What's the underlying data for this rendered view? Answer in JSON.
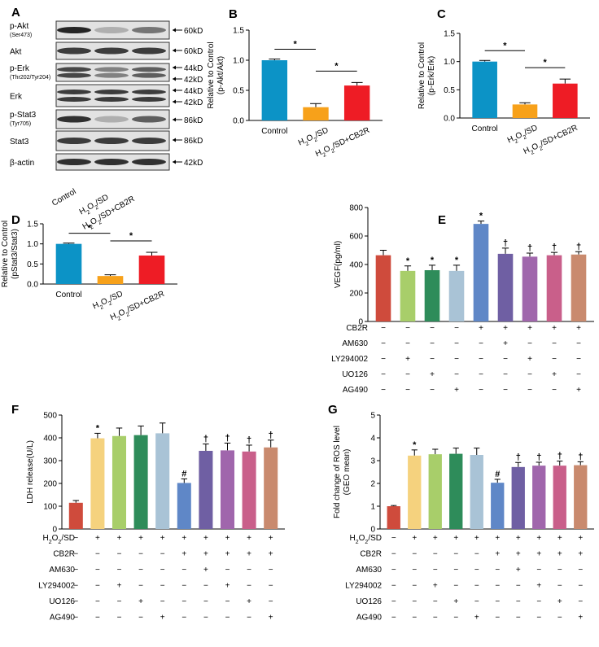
{
  "panel_labels": [
    "A",
    "B",
    "C",
    "D",
    "E",
    "F",
    "G"
  ],
  "chart_data": [
    {
      "panel": "B",
      "type": "bar",
      "ylabel": "Relative to Control\n(p-Akt/Akt)",
      "categories": [
        "Control",
        "H2O2/SD",
        "H2O2/SD+CB2R"
      ],
      "values": [
        1.0,
        0.22,
        0.58
      ],
      "errors": [
        0.02,
        0.06,
        0.05
      ],
      "colors": [
        "#0c93c6",
        "#f7a11a",
        "#ee1c25"
      ],
      "ylim": [
        0,
        1.5
      ],
      "yticks": [
        0.0,
        0.5,
        1.0,
        1.5
      ],
      "tick_labels": [
        "0.0",
        "0.5",
        "1.0",
        "1.5"
      ],
      "sig": [
        {
          "from": 0,
          "to": 1,
          "label": "*"
        },
        {
          "from": 1,
          "to": 2,
          "label": "*"
        }
      ]
    },
    {
      "panel": "C",
      "type": "bar",
      "ylabel": "Relative to Control\n(p-Erk/Erk)",
      "categories": [
        "Control",
        "H2O2/SD",
        "H2O2/SD+CB2R"
      ],
      "values": [
        1.0,
        0.24,
        0.61
      ],
      "errors": [
        0.02,
        0.03,
        0.08
      ],
      "colors": [
        "#0c93c6",
        "#f7a11a",
        "#ee1c25"
      ],
      "ylim": [
        0,
        1.5
      ],
      "yticks": [
        0.0,
        0.5,
        1.0,
        1.5
      ],
      "tick_labels": [
        "0.0",
        "0.5",
        "1.0",
        "1.5"
      ],
      "sig": [
        {
          "from": 0,
          "to": 1,
          "label": "*"
        },
        {
          "from": 1,
          "to": 2,
          "label": "*"
        }
      ]
    },
    {
      "panel": "D",
      "type": "bar",
      "ylabel": "Relative to Control\n(pStat3/Stat3)",
      "categories": [
        "Control",
        "H2O2/SD",
        "H2O2/SD+CB2R"
      ],
      "values": [
        1.0,
        0.2,
        0.71
      ],
      "errors": [
        0.02,
        0.03,
        0.08
      ],
      "colors": [
        "#0c93c6",
        "#f7a11a",
        "#ee1c25"
      ],
      "ylim": [
        0,
        1.5
      ],
      "yticks": [
        0.0,
        0.5,
        1.0,
        1.5
      ],
      "tick_labels": [
        "0.0",
        "0.5",
        "1.0",
        "1.5"
      ],
      "sig": [
        {
          "from": 0,
          "to": 1,
          "label": "*"
        },
        {
          "from": 1,
          "to": 2,
          "label": "*"
        }
      ]
    },
    {
      "panel": "E",
      "type": "bar",
      "ylabel": "VEGF(pg/ml)",
      "values": [
        465,
        355,
        360,
        355,
        685,
        475,
        455,
        465,
        470
      ],
      "errors": [
        35,
        35,
        35,
        40,
        20,
        40,
        25,
        20,
        20
      ],
      "marks": [
        "",
        "*",
        "*",
        "*",
        "*",
        "†",
        "†",
        "†",
        "†"
      ],
      "colors": [
        "#cf4b3c",
        "#a8ce6a",
        "#2e8c5a",
        "#a9c3d6",
        "#5f87c7",
        "#6f5fa3",
        "#a066ac",
        "#c95f8a",
        "#c98a6e"
      ],
      "ylim": [
        0,
        800
      ],
      "yticks": [
        0,
        200,
        400,
        600,
        800
      ],
      "tick_labels": [
        "0",
        "200",
        "400",
        "600",
        "800"
      ],
      "table": [
        {
          "label": "CB2R",
          "row": [
            "−",
            "−",
            "−",
            "−",
            "+",
            "+",
            "+",
            "+",
            "+"
          ]
        },
        {
          "label": "AM630",
          "row": [
            "−",
            "−",
            "−",
            "−",
            "−",
            "+",
            "−",
            "−",
            "−"
          ]
        },
        {
          "label": "LY294002",
          "row": [
            "−",
            "+",
            "−",
            "−",
            "−",
            "−",
            "+",
            "−",
            "−"
          ]
        },
        {
          "label": "UO126",
          "row": [
            "−",
            "−",
            "+",
            "−",
            "−",
            "−",
            "−",
            "+",
            "−"
          ]
        },
        {
          "label": "AG490",
          "row": [
            "−",
            "−",
            "−",
            "+",
            "−",
            "−",
            "−",
            "−",
            "+"
          ]
        }
      ]
    },
    {
      "panel": "F",
      "type": "bar",
      "ylabel": "LDH release(U/L)",
      "values": [
        115,
        398,
        408,
        412,
        420,
        202,
        343,
        345,
        340,
        358
      ],
      "errors": [
        10,
        22,
        35,
        40,
        45,
        18,
        30,
        32,
        28,
        32
      ],
      "marks": [
        "",
        "*",
        "",
        "",
        "",
        "#",
        "†",
        "†",
        "†",
        "†"
      ],
      "colors": [
        "#cf4b3c",
        "#f5d27e",
        "#a8ce6a",
        "#2e8c5a",
        "#a9c3d6",
        "#5f87c7",
        "#6f5fa3",
        "#a066ac",
        "#c95f8a",
        "#c98a6e"
      ],
      "ylim": [
        0,
        500
      ],
      "yticks": [
        0,
        100,
        200,
        300,
        400,
        500
      ],
      "tick_labels": [
        "0",
        "100",
        "200",
        "300",
        "400",
        "500"
      ],
      "table": [
        {
          "label": "H2O2/SD",
          "row": [
            "−",
            "+",
            "+",
            "+",
            "+",
            "+",
            "+",
            "+",
            "+",
            "+"
          ]
        },
        {
          "label": "CB2R",
          "row": [
            "−",
            "−",
            "−",
            "−",
            "−",
            "+",
            "+",
            "+",
            "+",
            "+"
          ]
        },
        {
          "label": "AM630",
          "row": [
            "−",
            "−",
            "−",
            "−",
            "−",
            "−",
            "+",
            "−",
            "−",
            "−"
          ]
        },
        {
          "label": "LY294002",
          "row": [
            "−",
            "−",
            "+",
            "−",
            "−",
            "−",
            "−",
            "+",
            "−",
            "−"
          ]
        },
        {
          "label": "UO126",
          "row": [
            "−",
            "−",
            "−",
            "+",
            "−",
            "−",
            "−",
            "−",
            "+",
            "−"
          ]
        },
        {
          "label": "AG490",
          "row": [
            "−",
            "−",
            "−",
            "−",
            "+",
            "−",
            "−",
            "−",
            "−",
            "+"
          ]
        }
      ]
    },
    {
      "panel": "G",
      "type": "bar",
      "ylabel": "Fold change of ROS level\n(GEO mean)",
      "values": [
        1.0,
        3.22,
        3.28,
        3.3,
        3.25,
        2.03,
        2.72,
        2.78,
        2.78,
        2.8
      ],
      "errors": [
        0.03,
        0.25,
        0.22,
        0.25,
        0.3,
        0.15,
        0.2,
        0.15,
        0.2,
        0.15
      ],
      "marks": [
        "",
        "*",
        "",
        "",
        "",
        "#",
        "†",
        "†",
        "†",
        "†"
      ],
      "colors": [
        "#cf4b3c",
        "#f5d27e",
        "#a8ce6a",
        "#2e8c5a",
        "#a9c3d6",
        "#5f87c7",
        "#6f5fa3",
        "#a066ac",
        "#c95f8a",
        "#c98a6e"
      ],
      "ylim": [
        0,
        5
      ],
      "yticks": [
        0,
        1,
        2,
        3,
        4,
        5
      ],
      "tick_labels": [
        "0",
        "1",
        "2",
        "3",
        "4",
        "5"
      ],
      "table": [
        {
          "label": "H2O2/SD",
          "row": [
            "−",
            "+",
            "+",
            "+",
            "+",
            "+",
            "+",
            "+",
            "+",
            "+"
          ]
        },
        {
          "label": "CB2R",
          "row": [
            "−",
            "−",
            "−",
            "−",
            "−",
            "+",
            "+",
            "+",
            "+",
            "+"
          ]
        },
        {
          "label": "AM630",
          "row": [
            "−",
            "−",
            "−",
            "−",
            "−",
            "−",
            "+",
            "−",
            "−",
            "−"
          ]
        },
        {
          "label": "LY294002",
          "row": [
            "−",
            "−",
            "+",
            "−",
            "−",
            "−",
            "−",
            "+",
            "−",
            "−"
          ]
        },
        {
          "label": "UO126",
          "row": [
            "−",
            "−",
            "−",
            "+",
            "−",
            "−",
            "−",
            "−",
            "+",
            "−"
          ]
        },
        {
          "label": "AG490",
          "row": [
            "−",
            "−",
            "−",
            "−",
            "+",
            "−",
            "−",
            "−",
            "−",
            "+"
          ]
        }
      ]
    }
  ],
  "blot": {
    "rows": [
      {
        "label": "p-Akt",
        "sub": "(Ser473)",
        "kd": [
          "60kD"
        ],
        "bands": [
          0.95,
          0.35,
          0.6
        ]
      },
      {
        "label": "Akt",
        "sub": "",
        "kd": [
          "60kD"
        ],
        "bands": [
          0.85,
          0.85,
          0.85
        ]
      },
      {
        "label": "p-Erk",
        "sub": "(Thr202/Tyr204)",
        "kd": [
          "44kD",
          "42kD"
        ],
        "bands": [
          0.8,
          0.55,
          0.7
        ]
      },
      {
        "label": "Erk",
        "sub": "",
        "kd": [
          "44kD",
          "42kD"
        ],
        "bands": [
          0.85,
          0.85,
          0.85
        ]
      },
      {
        "label": "p-Stat3",
        "sub": "(Tyr705)",
        "kd": [
          "86kD"
        ],
        "bands": [
          0.9,
          0.35,
          0.7
        ]
      },
      {
        "label": "Stat3",
        "sub": "",
        "kd": [
          "86kD"
        ],
        "bands": [
          0.85,
          0.85,
          0.85
        ]
      },
      {
        "label": "β-actin",
        "sub": "",
        "kd": [
          "42kD"
        ],
        "bands": [
          0.9,
          0.9,
          0.9
        ]
      }
    ],
    "lanes": [
      "Control",
      "H2O2/SD",
      "H2O2/SD+CB2R"
    ]
  }
}
